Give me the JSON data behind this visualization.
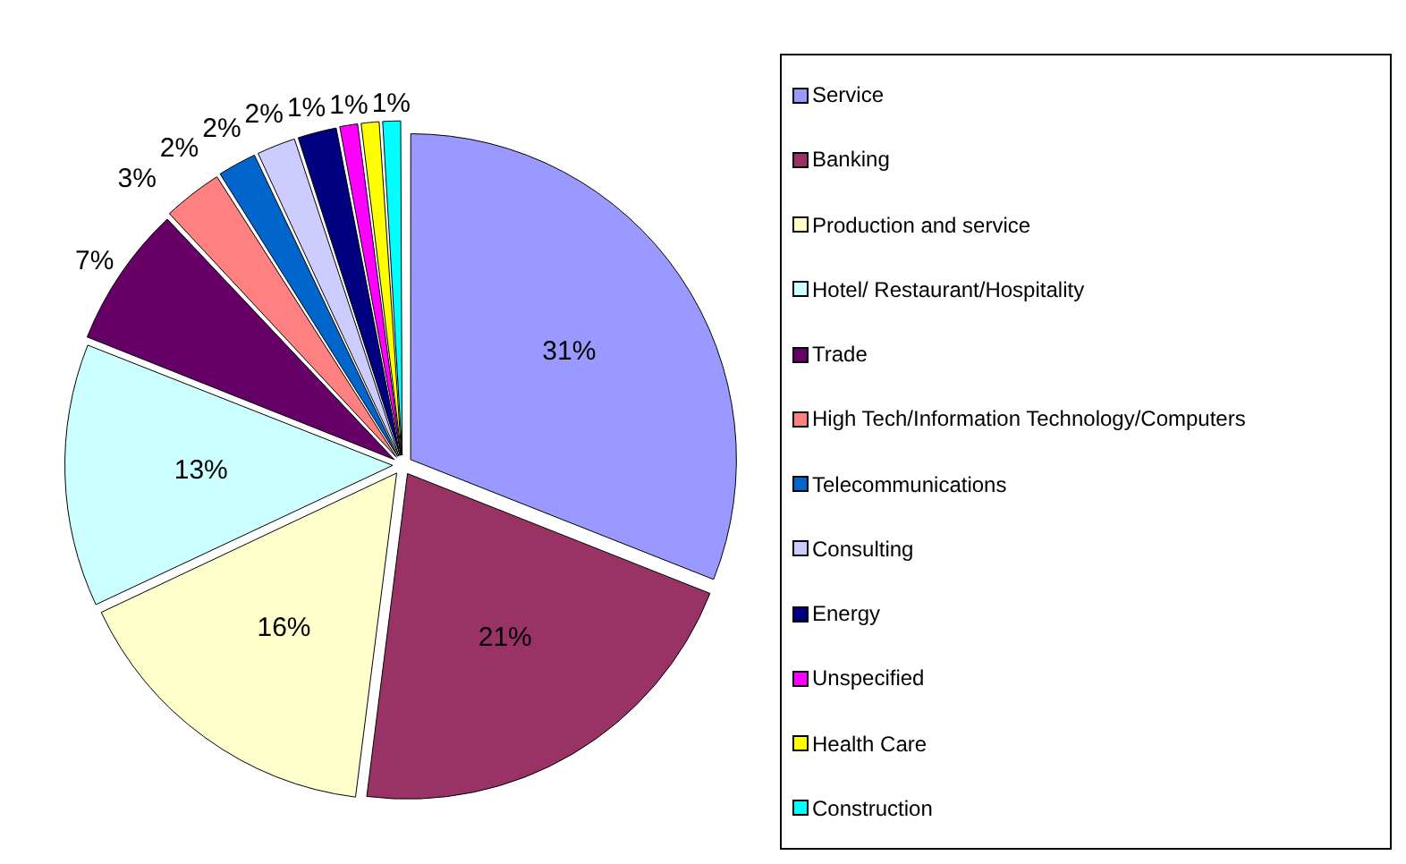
{
  "chart_data": {
    "type": "pie",
    "categories": [
      "Service",
      "Banking",
      "Production and service",
      "Hotel/ Restaurant/Hospitality",
      "Trade",
      "High Tech/Information Technology/Computers",
      "Telecommunications",
      "Consulting",
      "Energy",
      "Unspecified",
      "Health Care",
      "Construction"
    ],
    "values": [
      31,
      21,
      16,
      13,
      7,
      3,
      2,
      2,
      2,
      1,
      1,
      1
    ],
    "colors": [
      "#9999ff",
      "#993366",
      "#ffffcc",
      "#ccffff",
      "#660066",
      "#ff8080",
      "#0066cc",
      "#ccccff",
      "#000080",
      "#ff00ff",
      "#ffff00",
      "#00ffff"
    ],
    "value_labels": [
      "31%",
      "21%",
      "16%",
      "13%",
      "7%",
      "3%",
      "2%",
      "2%",
      "2%",
      "1%",
      "1%",
      "1%"
    ],
    "legend": "right"
  }
}
